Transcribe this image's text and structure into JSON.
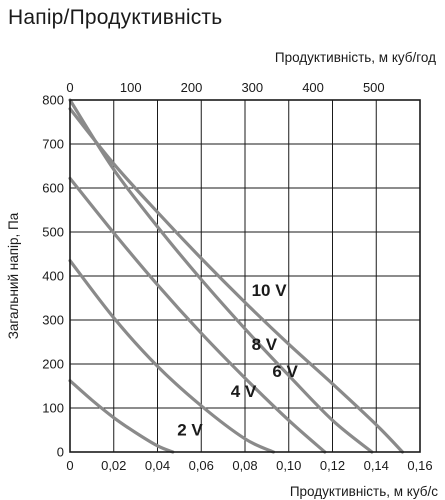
{
  "chart_data": {
    "type": "line",
    "title": "Напір/Продуктивність",
    "xlabel": "Продуктивність, м куб/с",
    "x2label": "Продуктивність, м куб/год",
    "ylabel": "Загальний напір, Па",
    "xlim": [
      0,
      0.16
    ],
    "ylim": [
      0,
      800
    ],
    "x_ticks": [
      0,
      0.02,
      0.04,
      0.06,
      0.08,
      0.1,
      0.12,
      0.14,
      0.16
    ],
    "x_tick_labels": [
      "0",
      "0,02",
      "0,04",
      "0,06",
      "0,08",
      "0,10",
      "0,12",
      "0,14",
      "0,16"
    ],
    "x2_ticks": [
      0,
      100,
      200,
      300,
      400,
      500
    ],
    "x2_tick_labels": [
      "0",
      "100",
      "200",
      "300",
      "400",
      "500"
    ],
    "y_ticks": [
      0,
      100,
      200,
      300,
      400,
      500,
      600,
      700,
      800
    ],
    "y_tick_labels": [
      "0",
      "100",
      "200",
      "300",
      "400",
      "500",
      "600",
      "700",
      "800"
    ],
    "grid": true,
    "line_color": "#8a8a8a",
    "series": [
      {
        "name": "2 V",
        "x": [
          0,
          0.01,
          0.02,
          0.03,
          0.04,
          0.047
        ],
        "y": [
          162,
          118,
          78,
          44,
          14,
          0
        ],
        "label_at": [
          0.049,
          38
        ]
      },
      {
        "name": "4 V",
        "x": [
          0,
          0.02,
          0.04,
          0.06,
          0.08,
          0.093
        ],
        "y": [
          435,
          305,
          195,
          105,
          30,
          0
        ],
        "label_at": [
          0.0735,
          125
        ]
      },
      {
        "name": "6 V",
        "x": [
          0,
          0.02,
          0.04,
          0.06,
          0.08,
          0.1,
          0.1165
        ],
        "y": [
          622,
          498,
          380,
          270,
          168,
          72,
          0
        ],
        "label_at": [
          0.0925,
          170
        ]
      },
      {
        "name": "8 V",
        "x": [
          0,
          0.02,
          0.04,
          0.06,
          0.08,
          0.1,
          0.12,
          0.138
        ],
        "y": [
          800,
          642,
          512,
          392,
          280,
          174,
          72,
          0
        ],
        "label_at": [
          0.083,
          232
        ]
      },
      {
        "name": "10 V",
        "x": [
          0,
          0.02,
          0.04,
          0.06,
          0.08,
          0.1,
          0.12,
          0.14,
          0.152
        ],
        "y": [
          780,
          655,
          545,
          440,
          340,
          245,
          155,
          62,
          0
        ],
        "label_at": [
          0.083,
          355
        ]
      }
    ]
  }
}
